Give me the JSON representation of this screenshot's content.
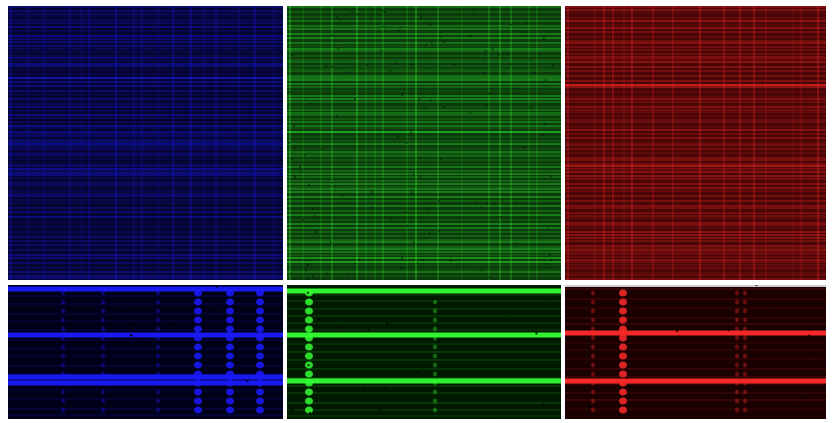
{
  "figure": {
    "panels": [
      {
        "id": "blue-overview",
        "row": "top",
        "channel": "blue",
        "color": "#1a1aff",
        "base": "#050530"
      },
      {
        "id": "green-overview",
        "row": "top",
        "channel": "green",
        "color": "#33ff33",
        "base": "#0b3a0b"
      },
      {
        "id": "red-overview",
        "row": "top",
        "channel": "red",
        "color": "#ff2a2a",
        "base": "#4a0606"
      },
      {
        "id": "blue-zoom",
        "row": "bottom",
        "channel": "blue",
        "color": "#1a1aff",
        "base": "#000018"
      },
      {
        "id": "green-zoom",
        "row": "bottom",
        "channel": "green",
        "color": "#33ff33",
        "base": "#001a00"
      },
      {
        "id": "red-zoom",
        "row": "bottom",
        "channel": "red",
        "color": "#ff2a2a",
        "base": "#1a0000"
      }
    ]
  }
}
